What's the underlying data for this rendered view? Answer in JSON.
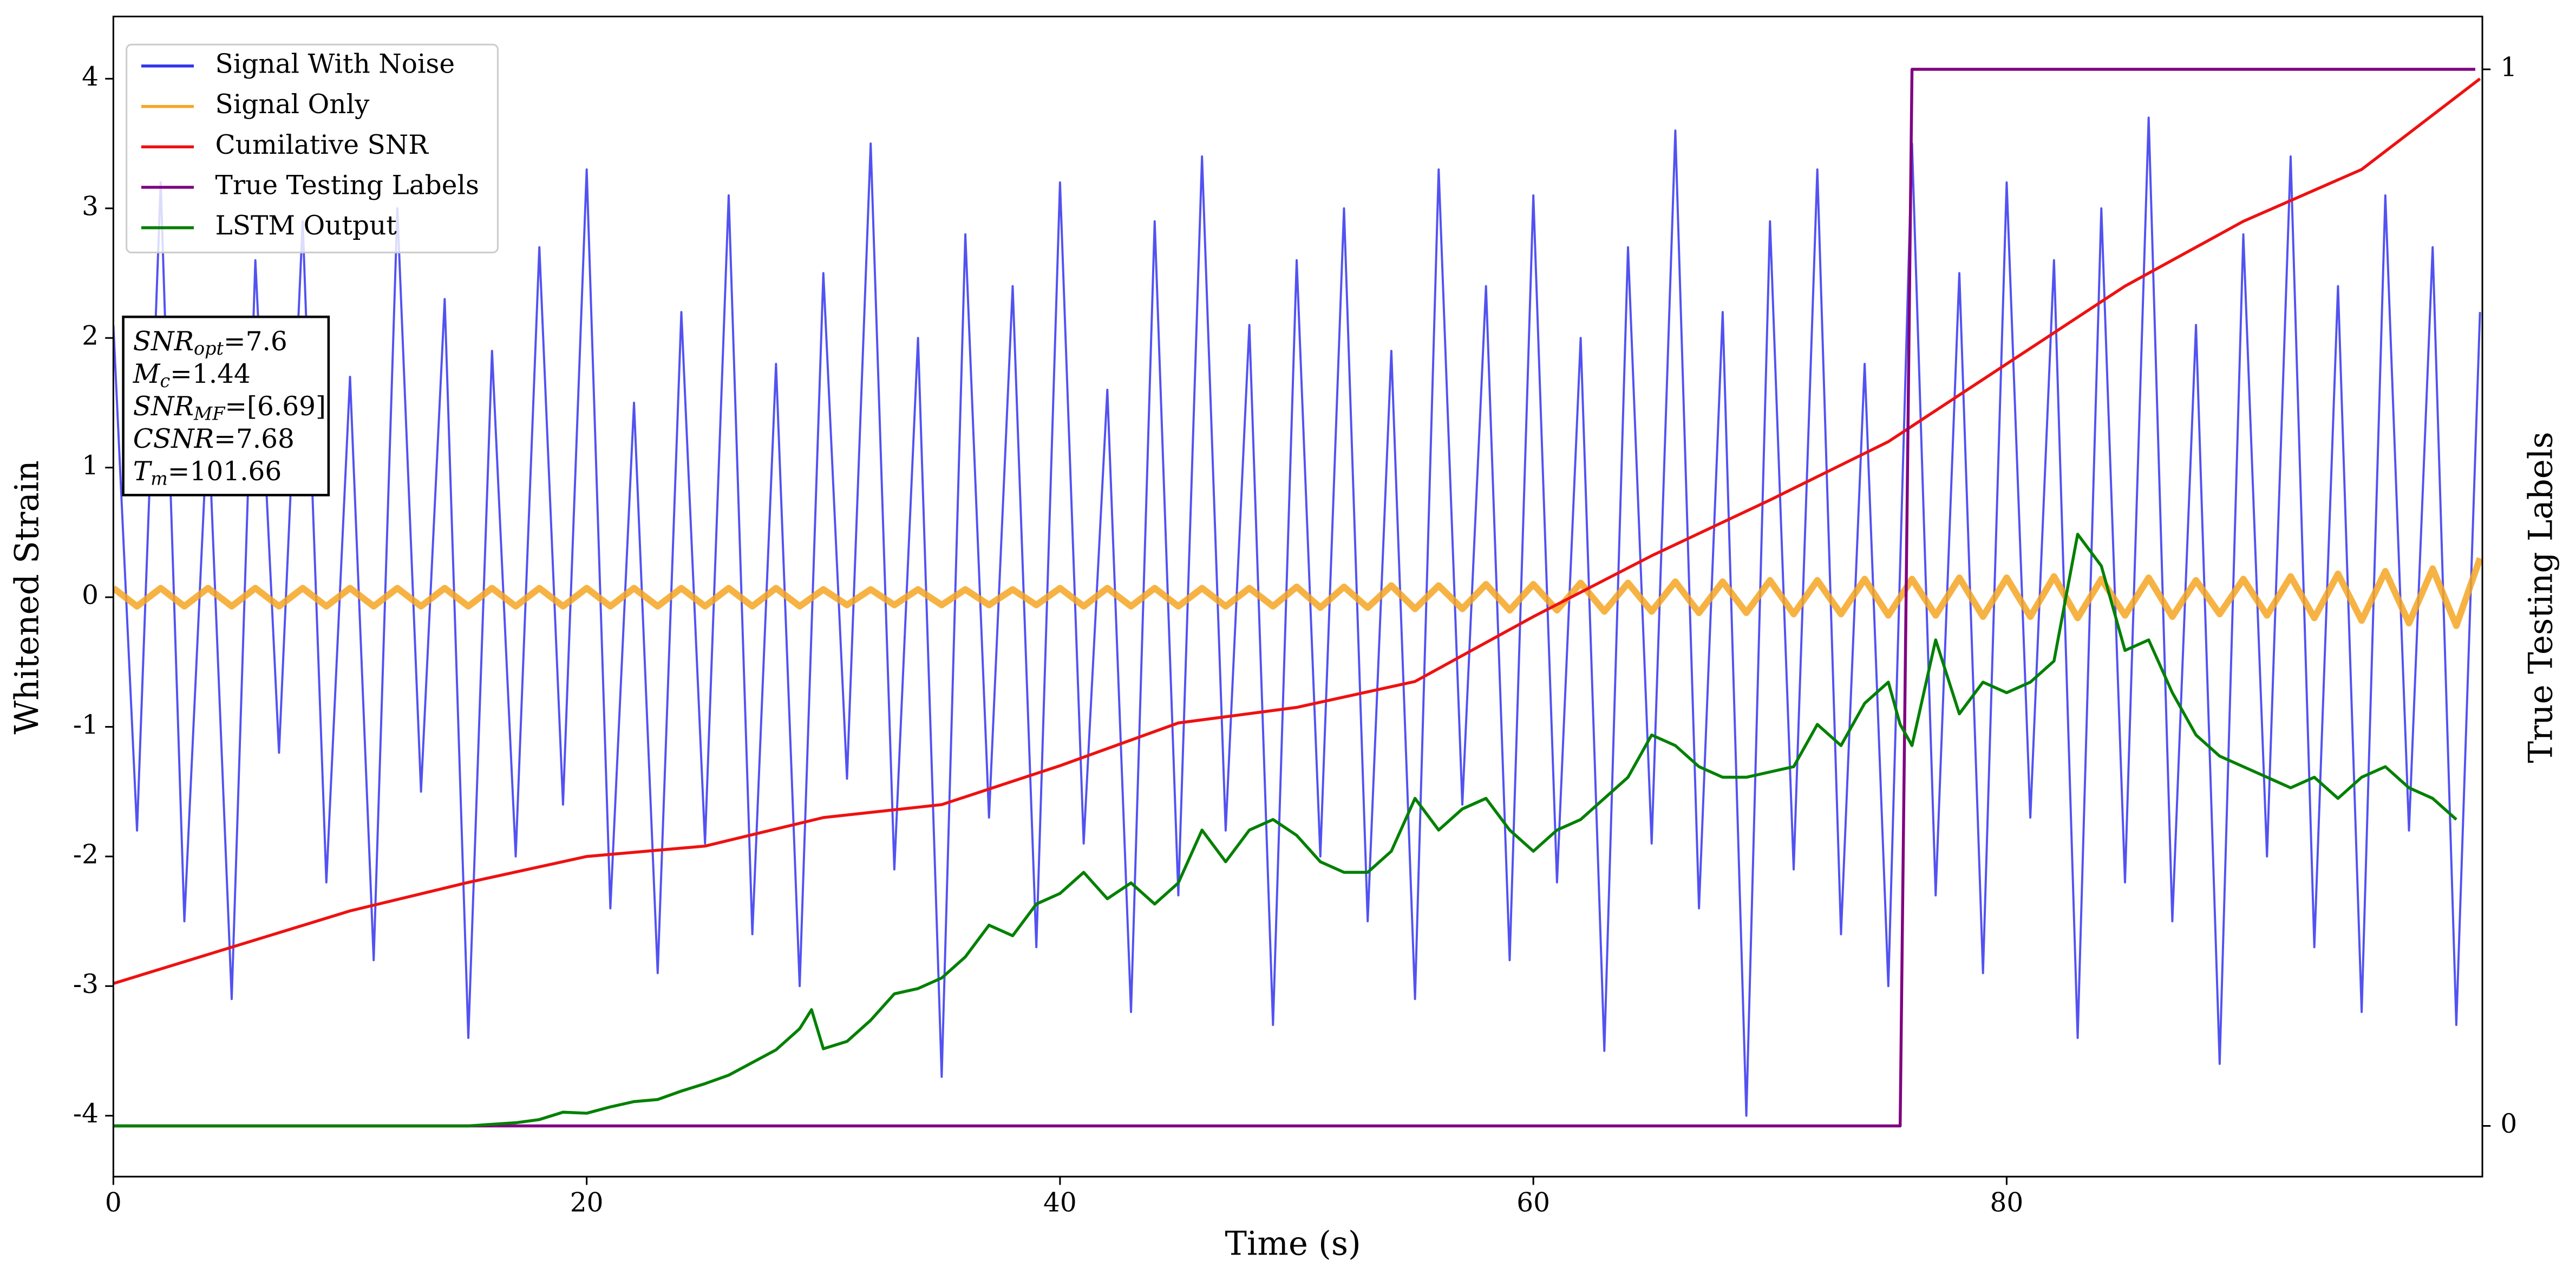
{
  "chart_data": {
    "type": "line",
    "xlabel": "Time (s)",
    "ylabel": "Whitened Strain",
    "y2label": "True Testing Labels",
    "xlim": [
      0,
      100.1
    ],
    "xticks": [
      0,
      20,
      40,
      60,
      80
    ],
    "ylim": [
      -4.47,
      4.48
    ],
    "yticks": [
      -4,
      -3,
      -2,
      -1,
      0,
      1,
      2,
      3,
      4
    ],
    "y2lim": [
      -0.048,
      1.05
    ],
    "y2ticks": [
      0,
      1
    ],
    "legend": "upper left",
    "x": [
      0,
      1,
      2,
      3,
      4,
      5,
      6,
      7,
      8,
      9,
      10,
      11,
      12,
      13,
      14,
      15,
      16,
      17,
      18,
      19,
      20,
      21,
      22,
      23,
      24,
      25,
      26,
      27,
      28,
      29,
      30,
      31,
      32,
      33,
      34,
      35,
      36,
      37,
      38,
      39,
      40,
      41,
      42,
      43,
      44,
      45,
      46,
      47,
      48,
      49,
      50,
      51,
      52,
      53,
      54,
      55,
      56,
      57,
      58,
      59,
      60,
      61,
      62,
      63,
      64,
      65,
      66,
      67,
      68,
      69,
      70,
      71,
      72,
      73,
      74,
      75,
      76,
      77,
      78,
      79,
      80,
      81,
      82,
      83,
      84,
      85,
      86,
      87,
      88,
      89,
      90,
      91,
      92,
      93,
      94,
      95,
      96,
      97,
      98,
      99,
      100
    ],
    "series": [
      {
        "name": "Signal With Noise",
        "color": "#3434ee",
        "values": [
          2.1,
          -1.8,
          3.2,
          -2.5,
          1.4,
          -3.1,
          2.6,
          -1.2,
          2.9,
          -2.2,
          1.7,
          -2.8,
          3.0,
          -1.5,
          2.3,
          -3.4,
          1.9,
          -2.0,
          2.7,
          -1.6,
          3.3,
          -2.4,
          1.5,
          -2.9,
          2.2,
          -1.9,
          3.1,
          -2.6,
          1.8,
          -3.0,
          2.5,
          -1.4,
          3.5,
          -2.1,
          2.0,
          -3.7,
          2.8,
          -1.7,
          2.4,
          -2.7,
          3.2,
          -1.9,
          1.6,
          -3.2,
          2.9,
          -2.3,
          3.4,
          -1.8,
          2.1,
          -3.3,
          2.6,
          -2.0,
          3.0,
          -2.5,
          1.9,
          -3.1,
          3.3,
          -1.6,
          2.4,
          -2.8,
          3.1,
          -2.2,
          2.0,
          -3.5,
          2.7,
          -1.9,
          3.6,
          -2.4,
          2.2,
          -4.0,
          2.9,
          -2.1,
          3.3,
          -2.6,
          1.8,
          -3.0,
          3.5,
          -2.3,
          2.5,
          -2.9,
          3.2,
          -1.7,
          2.6,
          -3.4,
          3.0,
          -2.2,
          3.7,
          -2.5,
          2.1,
          -3.6,
          2.8,
          -2.0,
          3.4,
          -2.7,
          2.4,
          -3.2,
          3.1,
          -1.8,
          2.7,
          -3.3,
          2.2
        ]
      },
      {
        "name": "Signal Only",
        "color": "#f5a623",
        "values": [
          0.07,
          -0.07,
          0.07,
          -0.07,
          0.07,
          -0.07,
          0.07,
          -0.07,
          0.07,
          -0.07,
          0.07,
          -0.07,
          0.07,
          -0.07,
          0.07,
          -0.07,
          0.07,
          -0.07,
          0.07,
          -0.07,
          0.07,
          -0.07,
          0.07,
          -0.07,
          0.07,
          -0.07,
          0.07,
          -0.07,
          0.07,
          -0.07,
          0.06,
          -0.06,
          0.06,
          -0.06,
          0.06,
          -0.06,
          0.06,
          -0.06,
          0.06,
          -0.06,
          0.07,
          -0.07,
          0.07,
          -0.07,
          0.07,
          -0.07,
          0.07,
          -0.07,
          0.07,
          -0.07,
          0.08,
          -0.08,
          0.08,
          -0.08,
          0.09,
          -0.09,
          0.09,
          -0.09,
          0.1,
          -0.1,
          0.1,
          -0.1,
          0.11,
          -0.11,
          0.11,
          -0.11,
          0.12,
          -0.12,
          0.12,
          -0.12,
          0.13,
          -0.13,
          0.13,
          -0.13,
          0.14,
          -0.14,
          0.14,
          -0.14,
          0.15,
          -0.15,
          0.15,
          -0.15,
          0.16,
          -0.16,
          0.14,
          -0.14,
          0.15,
          -0.15,
          0.13,
          -0.13,
          0.14,
          -0.14,
          0.16,
          -0.16,
          0.18,
          -0.18,
          0.2,
          -0.2,
          0.22,
          -0.22,
          0.3
        ]
      },
      {
        "name": "Cumilative SNR",
        "color": "#ee1111",
        "x": [
          0,
          5,
          10,
          15,
          20,
          25,
          30,
          35,
          40,
          45,
          50,
          55,
          60,
          65,
          70,
          75,
          80,
          85,
          90,
          95,
          100
        ],
        "values": [
          -2.98,
          -2.7,
          -2.42,
          -2.2,
          -2.0,
          -1.92,
          -1.7,
          -1.6,
          -1.3,
          -0.97,
          -0.85,
          -0.65,
          -0.15,
          0.32,
          0.75,
          1.2,
          1.8,
          2.4,
          2.9,
          3.3,
          4.0
        ]
      },
      {
        "name": "True Testing Labels",
        "color": "#800080",
        "axis": "y2",
        "x": [
          0,
          75.5,
          76,
          99.8
        ],
        "values": [
          0,
          0,
          1,
          1
        ]
      },
      {
        "name": "LSTM Output",
        "color": "#008000",
        "axis": "y2",
        "x": [
          0,
          15,
          17,
          18,
          19,
          20,
          21,
          22,
          23,
          24,
          25,
          26,
          27,
          28,
          29,
          29.5,
          30,
          31,
          32,
          33,
          34,
          35,
          36,
          37,
          38,
          39,
          40,
          41,
          42,
          43,
          44,
          45,
          46,
          47,
          48,
          49,
          50,
          51,
          52,
          53,
          54,
          55,
          56,
          57,
          58,
          59,
          60,
          61,
          62,
          63,
          64,
          65,
          66,
          67,
          68,
          69,
          70,
          71,
          72,
          73,
          74,
          75,
          75.5,
          76,
          77,
          78,
          79,
          80,
          81,
          82,
          83,
          84,
          85,
          86,
          87,
          88,
          89,
          90,
          91,
          92,
          93,
          94,
          95,
          96,
          97,
          98,
          99
        ],
        "values": [
          0,
          0,
          0.003,
          0.006,
          0.013,
          0.012,
          0.018,
          0.023,
          0.025,
          0.033,
          0.04,
          0.048,
          0.06,
          0.072,
          0.092,
          0.11,
          0.073,
          0.08,
          0.1,
          0.125,
          0.13,
          0.14,
          0.16,
          0.19,
          0.18,
          0.21,
          0.22,
          0.24,
          0.215,
          0.23,
          0.21,
          0.23,
          0.28,
          0.25,
          0.28,
          0.29,
          0.275,
          0.25,
          0.24,
          0.24,
          0.26,
          0.31,
          0.28,
          0.3,
          0.31,
          0.28,
          0.26,
          0.28,
          0.29,
          0.31,
          0.33,
          0.37,
          0.36,
          0.34,
          0.33,
          0.33,
          0.335,
          0.34,
          0.38,
          0.36,
          0.4,
          0.42,
          0.38,
          0.36,
          0.46,
          0.39,
          0.42,
          0.41,
          0.42,
          0.44,
          0.56,
          0.53,
          0.45,
          0.46,
          0.41,
          0.37,
          0.35,
          0.34,
          0.33,
          0.32,
          0.33,
          0.31,
          0.33,
          0.34,
          0.32,
          0.31,
          0.29
        ]
      }
    ],
    "annotation": [
      {
        "label": "SNR",
        "sub": "opt",
        "value": "=7.6"
      },
      {
        "label": "M",
        "sub": "c",
        "value": "=1.44"
      },
      {
        "label": "SNR",
        "sub": "MF",
        "value": "=[6.69]"
      },
      {
        "label": "CSNR",
        "value": "=7.68"
      },
      {
        "label": "T",
        "sub": "m",
        "value": "=101.66"
      }
    ]
  }
}
